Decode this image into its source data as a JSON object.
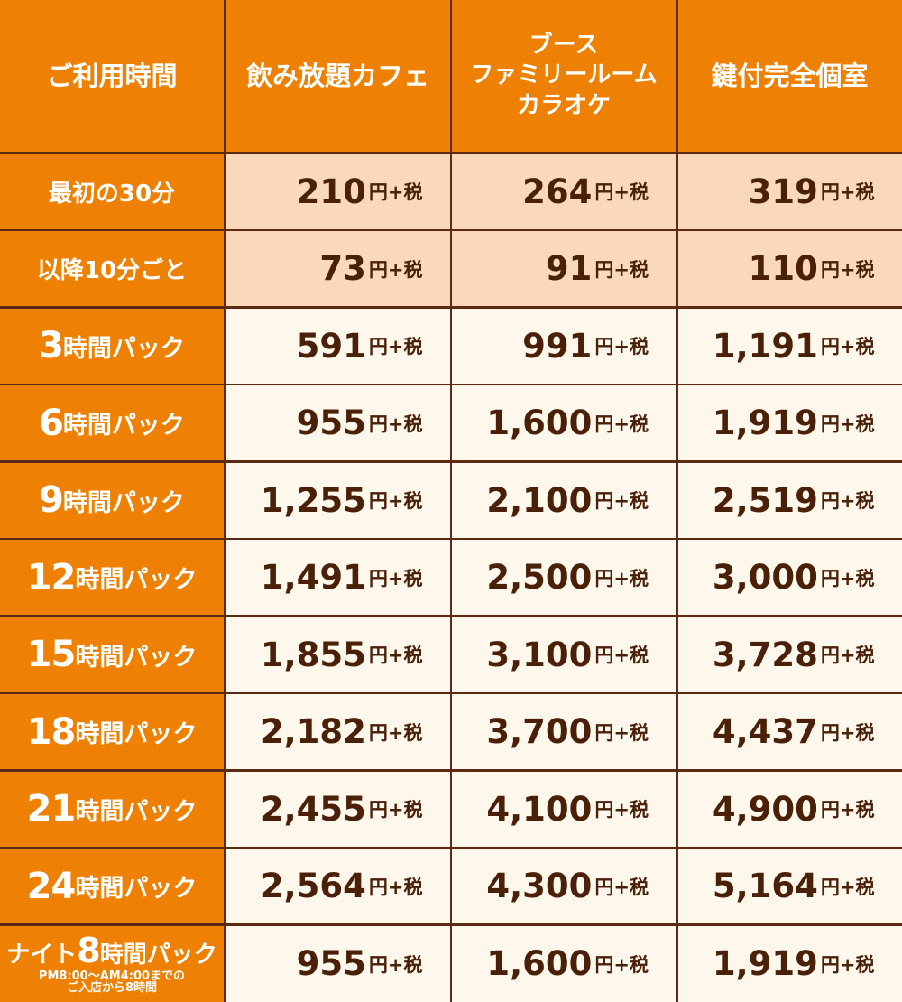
{
  "header": {
    "col0": "ご利用時間",
    "col1": "飲み放題カフェ",
    "col2_line1": "ブース",
    "col2_line2": "ファミリールーム",
    "col2_line3": "カラオケ",
    "col3": "鍵付完全個室"
  },
  "unit": "円+税",
  "rows": [
    {
      "label": "最初の30分",
      "prices": [
        "210",
        "264",
        "319"
      ]
    },
    {
      "label": "以降10分ごと",
      "prices": [
        "73",
        "91",
        "110"
      ]
    },
    {
      "num": "3",
      "suffix": "時間パック",
      "prices": [
        "591",
        "991",
        "1,191"
      ]
    },
    {
      "num": "6",
      "suffix": "時間パック",
      "prices": [
        "955",
        "1,600",
        "1,919"
      ]
    },
    {
      "num": "9",
      "suffix": "時間パック",
      "prices": [
        "1,255",
        "2,100",
        "2,519"
      ]
    },
    {
      "num": "12",
      "suffix": "時間パック",
      "prices": [
        "1,491",
        "2,500",
        "3,000"
      ]
    },
    {
      "num": "15",
      "suffix": "時間パック",
      "prices": [
        "1,855",
        "3,100",
        "3,728"
      ]
    },
    {
      "num": "18",
      "suffix": "時間パック",
      "prices": [
        "2,182",
        "3,700",
        "4,437"
      ]
    },
    {
      "num": "21",
      "suffix": "時間パック",
      "prices": [
        "2,455",
        "4,100",
        "4,900"
      ]
    },
    {
      "num": "24",
      "suffix": "時間パック",
      "prices": [
        "2,564",
        "4,300",
        "5,164"
      ]
    }
  ],
  "night": {
    "prefix": "ナイト",
    "num": "8",
    "suffix": "時間パック",
    "note1": "PM8:00～AM4:00までの",
    "note2": "ご入店から8時間",
    "prices": [
      "955",
      "1,600",
      "1,919"
    ]
  },
  "colors": {
    "header_bg": "#ee8103",
    "peach_bg": "#fad9bb",
    "cream_bg": "#fef7ec",
    "border": "#5c2a12",
    "price_text": "#4a2008"
  }
}
